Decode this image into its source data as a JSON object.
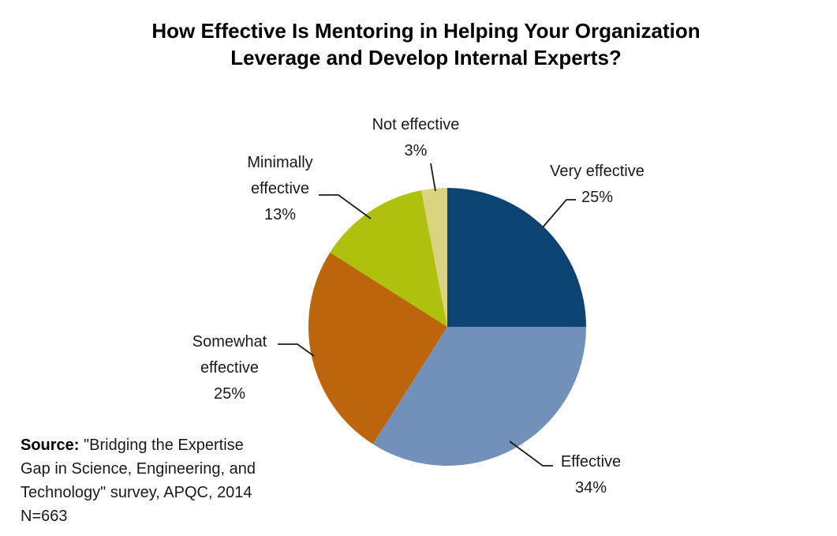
{
  "title": {
    "lines": [
      "How Effective Is Mentoring in Helping Your Organization",
      "Leverage and Develop Internal Experts?"
    ]
  },
  "chart_data": {
    "type": "pie",
    "title": "How Effective Is Mentoring in Helping Your Organization Leverage and Develop Internal Experts?",
    "start_position": "12 o'clock",
    "direction": "clockwise",
    "legend": "none",
    "data_labels": "outside with leader lines",
    "slices": [
      {
        "label": "Very effective",
        "value": 25,
        "pct_label": "25%",
        "color": "#0D4373"
      },
      {
        "label": "Effective",
        "value": 34,
        "pct_label": "34%",
        "color": "#7191BA"
      },
      {
        "label": "Somewhat effective",
        "value": 25,
        "pct_label": "25%",
        "color": "#BD650D"
      },
      {
        "label": "Minimally effective",
        "value": 13,
        "pct_label": "13%",
        "color": "#AFC00D"
      },
      {
        "label": "Not effective",
        "value": 3,
        "pct_label": "3%",
        "color": "#DBD37D"
      }
    ]
  },
  "source": {
    "label": "Source:",
    "line1_rest": " \"Bridging the Expertise",
    "line2": "Gap in Science, Engineering, and",
    "line3": "Technology\" survey, APQC, 2014",
    "line4": "N=663"
  }
}
